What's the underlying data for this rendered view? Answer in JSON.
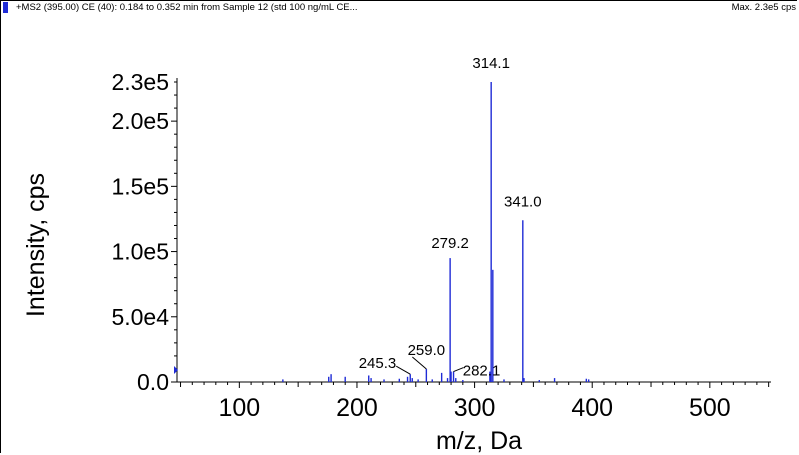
{
  "header": {
    "scan_info": "+MS2 (395.00) CE (40): 0.184 to 0.352 min from Sample 12 (std 100 ng/mL CE...",
    "max_info": "Max. 2.3e5 cps"
  },
  "colors": {
    "peak": "#1f2bd6",
    "axis": "#000000",
    "marker": "#1f2bd6"
  },
  "chart_data": {
    "type": "bar",
    "xlabel": "m/z, Da",
    "ylabel": "Intensity, cps",
    "xlim": [
      47,
      552
    ],
    "ylim": [
      0,
      230000
    ],
    "x_ticks": [
      {
        "value": 100,
        "label": "100"
      },
      {
        "value": 200,
        "label": "200"
      },
      {
        "value": 300,
        "label": "300"
      },
      {
        "value": 400,
        "label": "400"
      },
      {
        "value": 500,
        "label": "500"
      }
    ],
    "y_ticks": [
      {
        "value": 0,
        "label": "0.0"
      },
      {
        "value": 50000,
        "label": "5.0e4"
      },
      {
        "value": 100000,
        "label": "1.0e5"
      },
      {
        "value": 150000,
        "label": "1.5e5"
      },
      {
        "value": 200000,
        "label": "2.0e5"
      },
      {
        "value": 230000,
        "label": "2.3e5"
      }
    ],
    "series": [
      {
        "points": [
          {
            "mz": 137.0,
            "intensity": 2000
          },
          {
            "mz": 176.0,
            "intensity": 4000
          },
          {
            "mz": 178.0,
            "intensity": 6000
          },
          {
            "mz": 190.0,
            "intensity": 4000
          },
          {
            "mz": 210.0,
            "intensity": 5000
          },
          {
            "mz": 212.0,
            "intensity": 3000
          },
          {
            "mz": 223.0,
            "intensity": 2000
          },
          {
            "mz": 236.0,
            "intensity": 2500
          },
          {
            "mz": 243.0,
            "intensity": 4000
          },
          {
            "mz": 245.3,
            "intensity": 6000
          },
          {
            "mz": 247.0,
            "intensity": 3000
          },
          {
            "mz": 252.0,
            "intensity": 2000
          },
          {
            "mz": 259.0,
            "intensity": 10000
          },
          {
            "mz": 264.0,
            "intensity": 2000
          },
          {
            "mz": 272.0,
            "intensity": 7000
          },
          {
            "mz": 277.0,
            "intensity": 3000
          },
          {
            "mz": 279.2,
            "intensity": 95000
          },
          {
            "mz": 280.0,
            "intensity": 8000
          },
          {
            "mz": 282.1,
            "intensity": 8000
          },
          {
            "mz": 284.0,
            "intensity": 3000
          },
          {
            "mz": 290.0,
            "intensity": 1500
          },
          {
            "mz": 313.0,
            "intensity": 8000
          },
          {
            "mz": 314.1,
            "intensity": 230000
          },
          {
            "mz": 315.5,
            "intensity": 86000
          },
          {
            "mz": 325.0,
            "intensity": 2000
          },
          {
            "mz": 341.0,
            "intensity": 124000
          },
          {
            "mz": 342.0,
            "intensity": 3000
          },
          {
            "mz": 355.0,
            "intensity": 1500
          },
          {
            "mz": 368.0,
            "intensity": 3000
          },
          {
            "mz": 395.0,
            "intensity": 2500
          },
          {
            "mz": 397.0,
            "intensity": 2000
          }
        ]
      }
    ],
    "annotations": [
      {
        "text": "314.1",
        "mz": 314.1
      },
      {
        "text": "341.0",
        "mz": 341.0
      },
      {
        "text": "279.2",
        "mz": 279.2
      },
      {
        "text": "259.0",
        "mz": 259.0
      },
      {
        "text": "245.3",
        "mz": 245.3
      },
      {
        "text": "282.1",
        "mz": 282.1
      }
    ]
  }
}
